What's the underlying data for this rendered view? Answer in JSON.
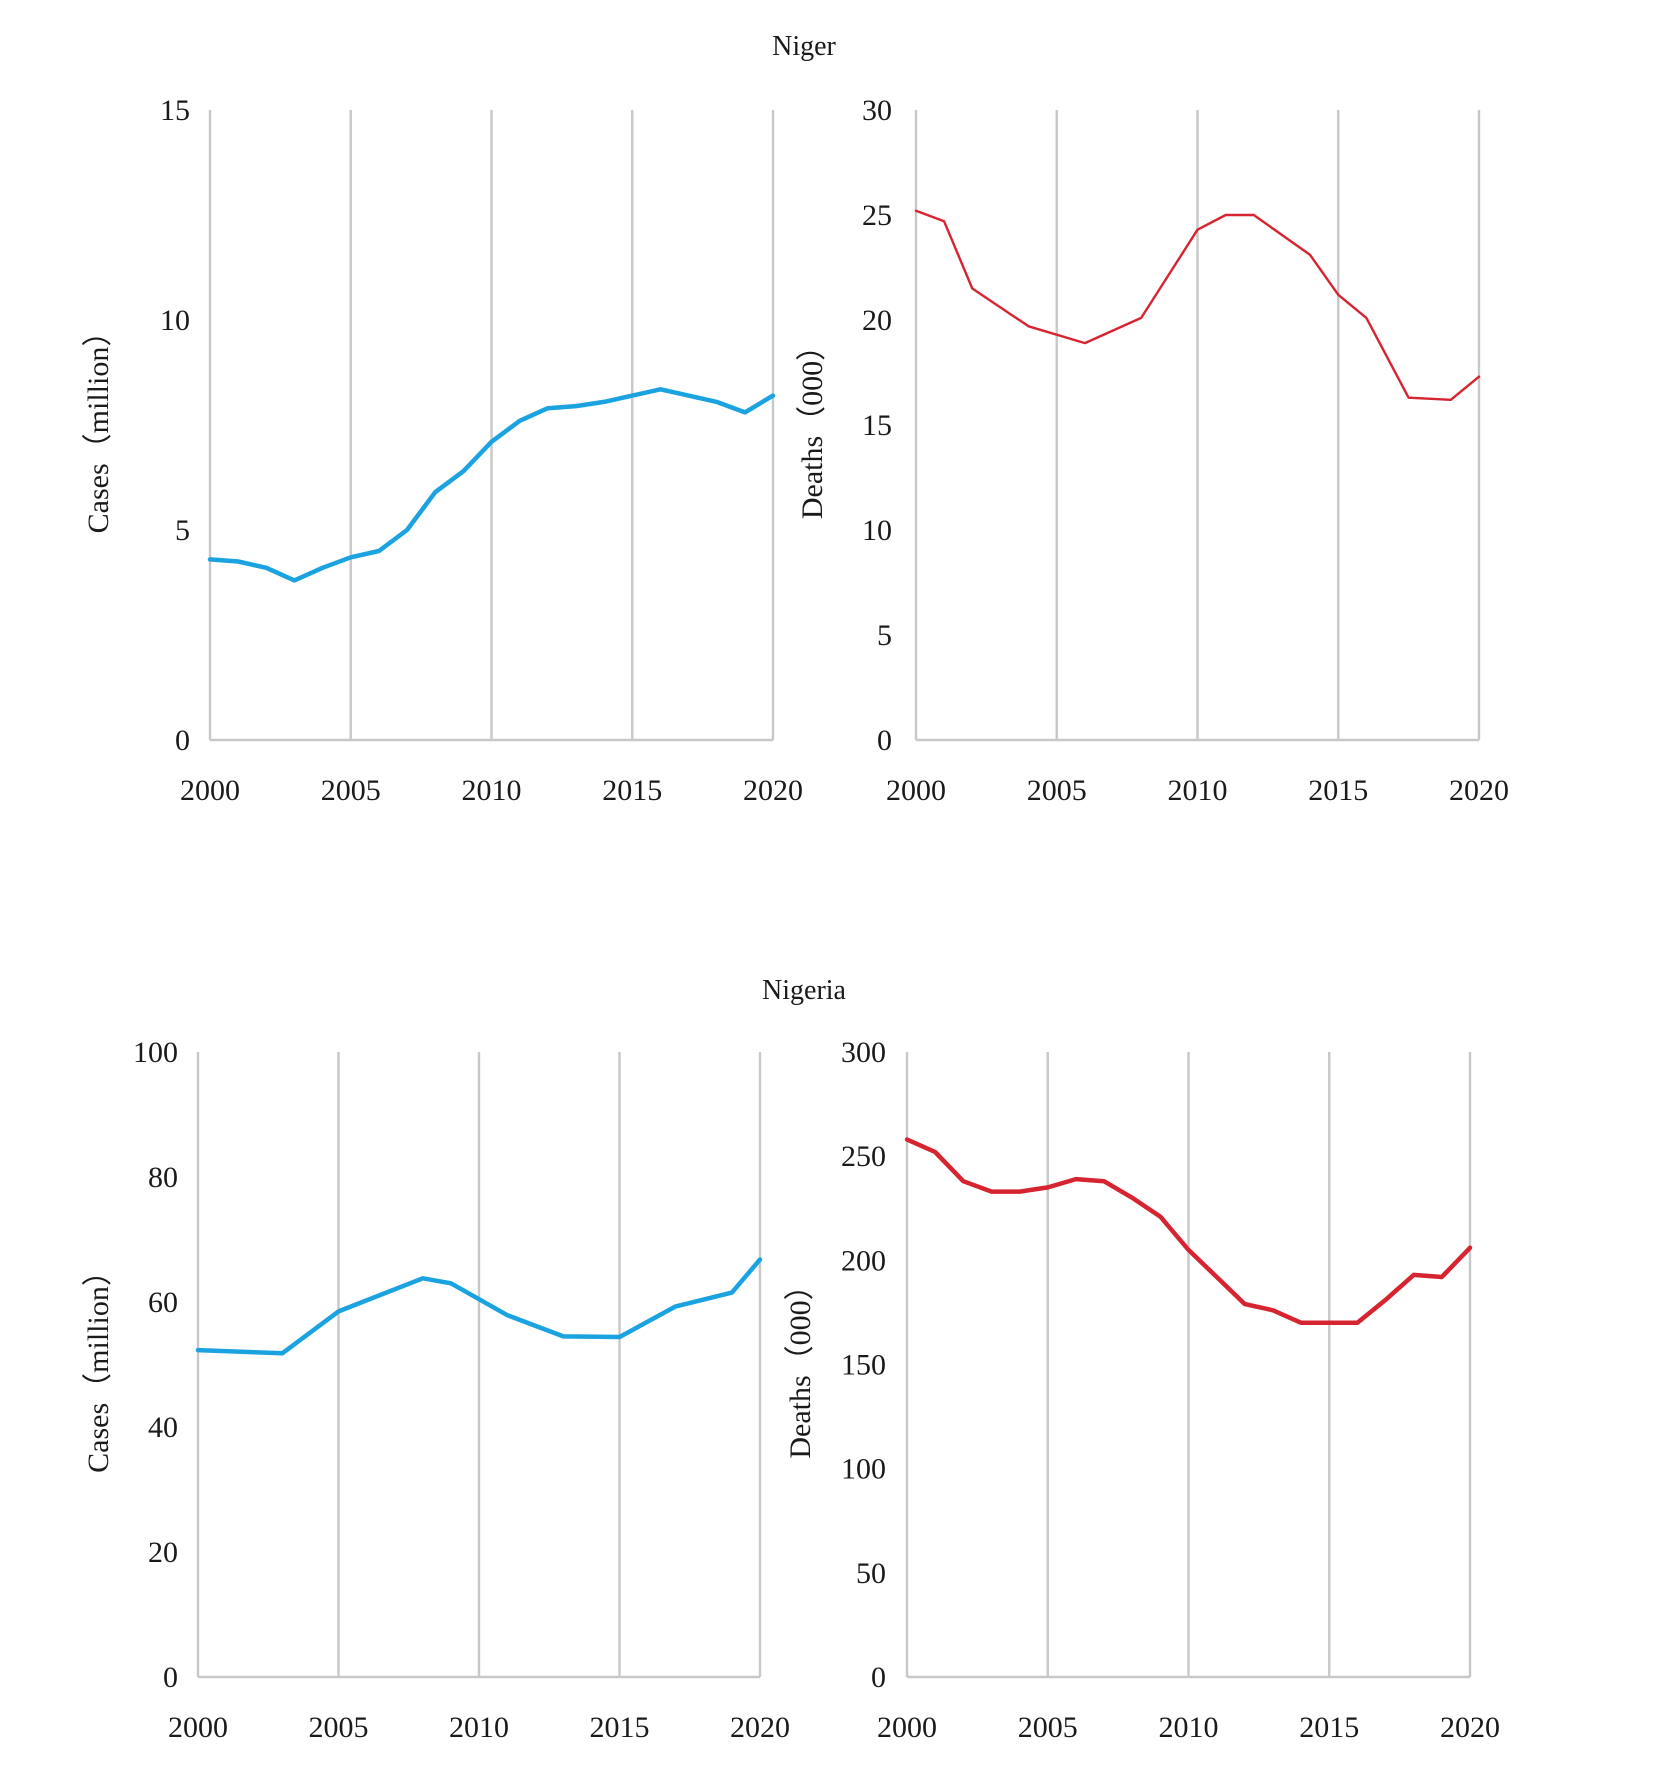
{
  "sections": [
    {
      "title": "Niger"
    },
    {
      "title": "Nigeria"
    }
  ],
  "chart_data": [
    {
      "id": "niger-cases",
      "type": "line",
      "section": "Niger",
      "ylabel": "Cases（million）",
      "xlim": [
        2000,
        2020
      ],
      "ylim": [
        0,
        15
      ],
      "xticks": [
        "2000",
        "2005",
        "2010",
        "2015",
        "2020"
      ],
      "yticks": [
        "0",
        "5",
        "10",
        "15"
      ],
      "color": "#1aa3e0",
      "x": [
        2000,
        2001,
        2002,
        2003,
        2004,
        2005,
        2006,
        2007,
        2008,
        2009,
        2010,
        2011,
        2012,
        2013,
        2014,
        2015,
        2016,
        2017,
        2018,
        2019,
        2020
      ],
      "values": [
        4.3,
        4.25,
        4.1,
        3.8,
        4.1,
        4.35,
        4.5,
        5.0,
        5.9,
        6.4,
        7.1,
        7.6,
        7.9,
        7.95,
        8.05,
        8.2,
        8.35,
        8.2,
        8.05,
        7.8,
        8.2
      ]
    },
    {
      "id": "niger-deaths",
      "type": "line",
      "section": "Niger",
      "ylabel": "Deaths（000）",
      "xlim": [
        2000,
        2020
      ],
      "ylim": [
        0,
        30
      ],
      "xticks": [
        "2000",
        "2005",
        "2010",
        "2015",
        "2020"
      ],
      "yticks": [
        "0",
        "5",
        "10",
        "15",
        "20",
        "25",
        "30"
      ],
      "color": "#d62430",
      "x": [
        2000,
        2001,
        2002,
        2004,
        2006,
        2008,
        2010,
        2011,
        2012,
        2014,
        2015,
        2016,
        2017.5,
        2019,
        2020
      ],
      "values": [
        25.2,
        24.7,
        21.5,
        19.7,
        18.9,
        20.1,
        24.3,
        25.0,
        25.0,
        23.1,
        21.2,
        20.1,
        16.3,
        16.2,
        17.3
      ]
    },
    {
      "id": "nigeria-cases",
      "type": "line",
      "section": "Nigeria",
      "ylabel": "Cases（million）",
      "xlim": [
        2000,
        2020
      ],
      "ylim": [
        0,
        100
      ],
      "xticks": [
        "2000",
        "2005",
        "2010",
        "2015",
        "2020"
      ],
      "yticks": [
        "0",
        "20",
        "40",
        "60",
        "80",
        "100"
      ],
      "color": "#1aa3e0",
      "x": [
        2000,
        2003,
        2005,
        2008,
        2009,
        2011,
        2013,
        2015,
        2017,
        2019,
        2020
      ],
      "values": [
        52.3,
        51.8,
        58.5,
        63.8,
        63.0,
        57.9,
        54.5,
        54.4,
        59.3,
        61.5,
        66.8
      ]
    },
    {
      "id": "nigeria-deaths",
      "type": "line",
      "section": "Nigeria",
      "ylabel": "Deaths（000）",
      "xlim": [
        2000,
        2020
      ],
      "ylim": [
        0,
        300
      ],
      "xticks": [
        "2000",
        "2005",
        "2010",
        "2015",
        "2020"
      ],
      "yticks": [
        "0",
        "50",
        "100",
        "150",
        "200",
        "250",
        "300"
      ],
      "color": "#d62430",
      "x": [
        2000,
        2001,
        2002,
        2003,
        2004,
        2005,
        2006,
        2007,
        2008,
        2009,
        2010,
        2011,
        2012,
        2013,
        2014,
        2015,
        2016,
        2017,
        2018,
        2019,
        2020
      ],
      "values": [
        258,
        252,
        238,
        233,
        233,
        235,
        239,
        238,
        230,
        221,
        205,
        192,
        179,
        176,
        170,
        170,
        170,
        181,
        193,
        192,
        206
      ]
    }
  ]
}
